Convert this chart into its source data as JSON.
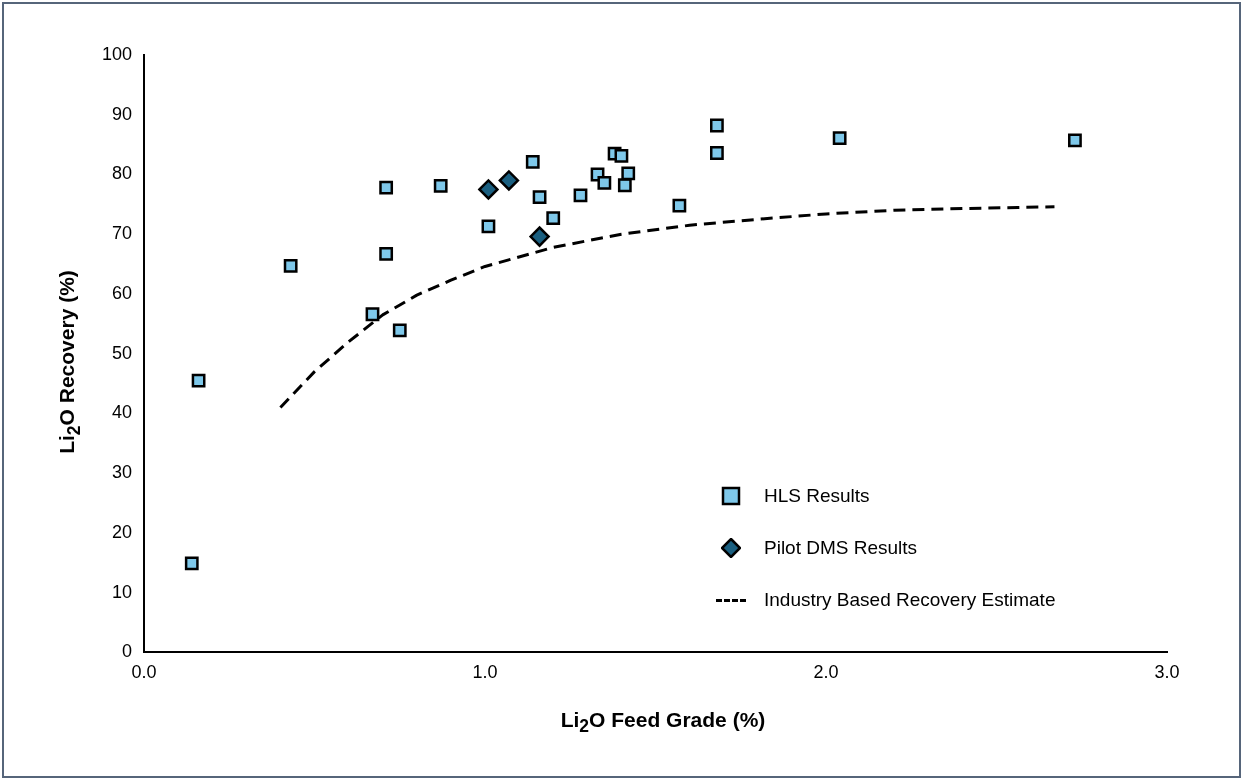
{
  "chart_data": {
    "type": "scatter",
    "xlabel": "Li$_{2}$O Feed Grade (%)",
    "ylabel": "Li$_{2}$O Recovery (%)",
    "xlim": [
      0,
      3
    ],
    "xticks": [
      {
        "value": 0,
        "label": "0.0"
      },
      {
        "value": 1,
        "label": "1.0"
      },
      {
        "value": 2,
        "label": "2.0"
      },
      {
        "value": 3,
        "label": "3.0"
      }
    ],
    "ylim": [
      0,
      100
    ],
    "yticks": [
      0,
      10,
      20,
      30,
      40,
      50,
      60,
      70,
      80,
      90,
      100
    ],
    "grid": false,
    "legend": "bottom right",
    "series": [
      {
        "name": "HLS Results",
        "marker": "square",
        "color": "#7ec8ea",
        "x": [
          0.14,
          0.16,
          0.43,
          0.67,
          0.71,
          0.71,
          0.75,
          0.87,
          1.01,
          1.14,
          1.16,
          1.2,
          1.28,
          1.33,
          1.35,
          1.38,
          1.4,
          1.41,
          1.42,
          1.57,
          1.68,
          1.68,
          2.04,
          2.73
        ],
        "values": [
          14.9,
          45.5,
          64.7,
          56.6,
          66.7,
          77.8,
          53.9,
          78.1,
          71.3,
          82.1,
          76.2,
          72.7,
          76.5,
          80.0,
          78.6,
          83.5,
          83.1,
          78.2,
          80.2,
          74.8,
          83.6,
          88.2,
          86.1,
          85.7
        ]
      },
      {
        "name": "Pilot DMS Results",
        "marker": "diamond",
        "color": "#1a5f80",
        "x": [
          1.01,
          1.07,
          1.16
        ],
        "values": [
          77.5,
          79.0,
          69.6
        ]
      },
      {
        "name": "Industry Based Recovery Estimate",
        "type": "line",
        "marker": "none",
        "line_style": "dashed",
        "color": "#000000",
        "x": [
          0.4,
          0.5,
          0.6,
          0.7,
          0.8,
          0.9,
          1.0,
          1.2,
          1.4,
          1.6,
          1.8,
          2.0,
          2.2,
          2.4,
          2.67
        ],
        "values": [
          41,
          47,
          52,
          56.5,
          59.8,
          62.3,
          64.6,
          67.8,
          70,
          71.5,
          72.5,
          73.4,
          74,
          74.3,
          74.6
        ]
      }
    ]
  }
}
